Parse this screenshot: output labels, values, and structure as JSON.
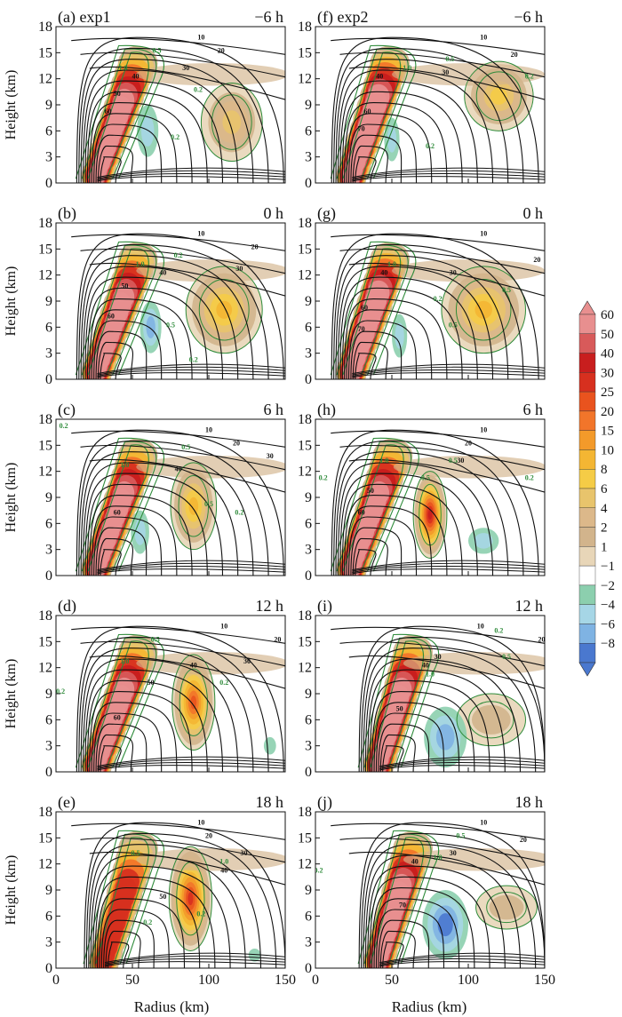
{
  "chart_data": {
    "type": "heatmap",
    "description_units": {
      "shading": "filled contours with discrete levels",
      "black_contours": "line contours",
      "green_contours": "line contours"
    },
    "xlabel": "Radius (km)",
    "ylabel": "Height (km)",
    "xlim": [
      0,
      150
    ],
    "ylim": [
      0,
      18
    ],
    "xticks": [
      0,
      50,
      100,
      150
    ],
    "yticks": [
      0,
      3,
      6,
      9,
      12,
      15,
      18
    ],
    "colorbar": {
      "levels": [
        "60",
        "50",
        "40",
        "30",
        "25",
        "20",
        "15",
        "10",
        "8",
        "6",
        "4",
        "2",
        "1",
        "−1",
        "−2",
        "−4",
        "−6",
        "−8"
      ],
      "colors": [
        "#e88f8f",
        "#d85a5a",
        "#c81e1e",
        "#d7301f",
        "#e9531e",
        "#f2752a",
        "#f39a2a",
        "#f4b633",
        "#f5cc46",
        "#e8c46c",
        "#dcb88a",
        "#d2b48c",
        "#e8d6b8",
        "#ffffff",
        "#8ccfae",
        "#a6d6e6",
        "#7fb3e3",
        "#4a78cf"
      ]
    },
    "black_contour_levels": [
      10,
      20,
      30,
      40,
      50,
      60,
      70
    ],
    "green_contour_levels": [
      0.2,
      0.5,
      1.0
    ],
    "panels": [
      {
        "id": "a",
        "label": "(a) exp1",
        "time": "−6 h",
        "col": 0,
        "row": 0,
        "eyewall": {
          "base_r": 25,
          "top_r": 55,
          "top_z": 14.5,
          "max": 60
        },
        "secondary": {
          "r": 115,
          "z": 7,
          "w": 40,
          "h": 9,
          "max": 6
        },
        "blue": {
          "r": 60,
          "z": 6,
          "w": 14,
          "h": 6,
          "min": -4
        },
        "contour_labels": [
          {
            "v": "10",
            "r": 95,
            "z": 16.5
          },
          {
            "v": "20",
            "r": 108,
            "z": 15
          },
          {
            "v": "30",
            "r": 85,
            "z": 13
          },
          {
            "v": "40",
            "r": 52,
            "z": 12
          },
          {
            "v": "50",
            "r": 40,
            "z": 10
          },
          {
            "v": "60",
            "r": 34,
            "z": 8
          }
        ],
        "green_labels": [
          {
            "v": "0.5",
            "r": 66,
            "z": 15
          },
          {
            "v": "1.0",
            "r": 44,
            "z": 13
          },
          {
            "v": "0.2",
            "r": 93,
            "z": 10.5
          },
          {
            "v": "0.2",
            "r": 78,
            "z": 5
          }
        ]
      },
      {
        "id": "f",
        "label": "(f) exp2",
        "time": "−6 h",
        "col": 1,
        "row": 0,
        "eyewall": {
          "base_r": 22,
          "top_r": 50,
          "top_z": 14.5,
          "max": 70
        },
        "secondary": {
          "r": 120,
          "z": 10,
          "w": 45,
          "h": 8,
          "max": 8
        },
        "blue": {
          "r": 50,
          "z": 5,
          "w": 10,
          "h": 5,
          "min": -4
        },
        "contour_labels": [
          {
            "v": "10",
            "r": 110,
            "z": 16.5
          },
          {
            "v": "20",
            "r": 130,
            "z": 14.5
          },
          {
            "v": "30",
            "r": 85,
            "z": 12.5
          },
          {
            "v": "40",
            "r": 42,
            "z": 12
          },
          {
            "v": "60",
            "r": 34,
            "z": 8
          },
          {
            "v": "70",
            "r": 30,
            "z": 6
          }
        ],
        "green_labels": [
          {
            "v": "0.5",
            "r": 88,
            "z": 14
          },
          {
            "v": "1.0",
            "r": 60,
            "z": 13
          },
          {
            "v": "0.2",
            "r": 140,
            "z": 12
          },
          {
            "v": "0.2",
            "r": 75,
            "z": 4
          }
        ]
      },
      {
        "id": "b",
        "label": "(b)",
        "time": "0 h",
        "col": 0,
        "row": 1,
        "eyewall": {
          "base_r": 25,
          "top_r": 55,
          "top_z": 14.5,
          "max": 60
        },
        "secondary": {
          "r": 110,
          "z": 8,
          "w": 50,
          "h": 10,
          "max": 10
        },
        "blue": {
          "r": 62,
          "z": 6,
          "w": 14,
          "h": 6,
          "min": -6
        },
        "contour_labels": [
          {
            "v": "10",
            "r": 95,
            "z": 16.5
          },
          {
            "v": "20",
            "r": 130,
            "z": 15
          },
          {
            "v": "30",
            "r": 120,
            "z": 12.5
          },
          {
            "v": "40",
            "r": 70,
            "z": 12
          },
          {
            "v": "50",
            "r": 45,
            "z": 10.5
          },
          {
            "v": "60",
            "r": 36,
            "z": 7
          }
        ],
        "green_labels": [
          {
            "v": "0.2",
            "r": 80,
            "z": 14
          },
          {
            "v": "1.0",
            "r": 55,
            "z": 13
          },
          {
            "v": "0.5",
            "r": 75,
            "z": 6
          },
          {
            "v": "0.2",
            "r": 90,
            "z": 2
          }
        ]
      },
      {
        "id": "g",
        "label": "(g)",
        "time": "0 h",
        "col": 1,
        "row": 1,
        "eyewall": {
          "base_r": 22,
          "top_r": 50,
          "top_z": 14.5,
          "max": 70
        },
        "secondary": {
          "r": 110,
          "z": 8,
          "w": 55,
          "h": 10,
          "max": 10
        },
        "blue": {
          "r": 55,
          "z": 5,
          "w": 10,
          "h": 5,
          "min": -4
        },
        "contour_labels": [
          {
            "v": "10",
            "r": 110,
            "z": 16.5
          },
          {
            "v": "20",
            "r": 145,
            "z": 13.5
          },
          {
            "v": "30",
            "r": 90,
            "z": 12
          },
          {
            "v": "40",
            "r": 45,
            "z": 12
          },
          {
            "v": "60",
            "r": 32,
            "z": 8
          },
          {
            "v": "70",
            "r": 30,
            "z": 5.5
          }
        ],
        "green_labels": [
          {
            "v": "0.5",
            "r": 125,
            "z": 10
          },
          {
            "v": "1.0",
            "r": 50,
            "z": 13
          },
          {
            "v": "0.2",
            "r": 80,
            "z": 9
          },
          {
            "v": "0.5",
            "r": 90,
            "z": 6
          }
        ]
      },
      {
        "id": "c",
        "label": "(c)",
        "time": "6 h",
        "col": 0,
        "row": 2,
        "eyewall": {
          "base_r": 25,
          "top_r": 55,
          "top_z": 14.5,
          "max": 60
        },
        "secondary": {
          "r": 90,
          "z": 8,
          "w": 30,
          "h": 10,
          "max": 10
        },
        "blue": {
          "r": 55,
          "z": 5,
          "w": 12,
          "h": 5,
          "min": -4
        },
        "contour_labels": [
          {
            "v": "10",
            "r": 100,
            "z": 16.5
          },
          {
            "v": "20",
            "r": 118,
            "z": 15
          },
          {
            "v": "30",
            "r": 140,
            "z": 13.5
          },
          {
            "v": "40",
            "r": 80,
            "z": 12
          },
          {
            "v": "60",
            "r": 40,
            "z": 7
          }
        ],
        "green_labels": [
          {
            "v": "0.2",
            "r": 5,
            "z": 17
          },
          {
            "v": "0.5",
            "r": 85,
            "z": 14.5
          },
          {
            "v": "1.0",
            "r": 45,
            "z": 12.5
          },
          {
            "v": "0.5",
            "r": 100,
            "z": 8
          },
          {
            "v": "0.2",
            "r": 120,
            "z": 7
          }
        ]
      },
      {
        "id": "h",
        "label": "(h)",
        "time": "6 h",
        "col": 1,
        "row": 2,
        "eyewall": {
          "base_r": 22,
          "top_r": 52,
          "top_z": 14.5,
          "max": 60
        },
        "secondary": {
          "r": 75,
          "z": 7,
          "w": 22,
          "h": 10,
          "max": 40
        },
        "blue": {
          "r": 110,
          "z": 4,
          "w": 20,
          "h": 3,
          "min": -4
        },
        "contour_labels": [
          {
            "v": "10",
            "r": 110,
            "z": 16.5
          },
          {
            "v": "20",
            "r": 100,
            "z": 15
          },
          {
            "v": "30",
            "r": 95,
            "z": 13
          },
          {
            "v": "50",
            "r": 36,
            "z": 9.5
          },
          {
            "v": "60",
            "r": 30,
            "z": 7
          }
        ],
        "green_labels": [
          {
            "v": "0.5",
            "r": 90,
            "z": 13
          },
          {
            "v": "1.0",
            "r": 45,
            "z": 13
          },
          {
            "v": "0.5",
            "r": 72,
            "z": 11
          },
          {
            "v": "0.2",
            "r": 140,
            "z": 11
          },
          {
            "v": "0.2",
            "r": 5,
            "z": 11
          }
        ]
      },
      {
        "id": "d",
        "label": "(d)",
        "time": "12 h",
        "col": 0,
        "row": 3,
        "eyewall": {
          "base_r": 25,
          "top_r": 55,
          "top_z": 14.5,
          "max": 60
        },
        "secondary": {
          "r": 90,
          "z": 8,
          "w": 28,
          "h": 11,
          "max": 25
        },
        "blue": {
          "r": 140,
          "z": 3,
          "w": 8,
          "h": 2,
          "min": -2
        },
        "contour_labels": [
          {
            "v": "10",
            "r": 110,
            "z": 16.5
          },
          {
            "v": "20",
            "r": 145,
            "z": 15
          },
          {
            "v": "30",
            "r": 125,
            "z": 12.5
          },
          {
            "v": "40",
            "r": 90,
            "z": 12
          },
          {
            "v": "50",
            "r": 62,
            "z": 10
          },
          {
            "v": "60",
            "r": 40,
            "z": 6
          }
        ],
        "green_labels": [
          {
            "v": "0.5",
            "r": 65,
            "z": 15
          },
          {
            "v": "1.0",
            "r": 45,
            "z": 12.5
          },
          {
            "v": "0.2",
            "r": 110,
            "z": 10
          },
          {
            "v": "0.2",
            "r": 3,
            "z": 9
          }
        ]
      },
      {
        "id": "i",
        "label": "(i)",
        "time": "12 h",
        "col": 1,
        "row": 3,
        "eyewall": {
          "base_r": 40,
          "top_r": 65,
          "top_z": 14.5,
          "max": 60
        },
        "secondary": {
          "r": 115,
          "z": 6,
          "w": 45,
          "h": 6,
          "max": 2
        },
        "blue": {
          "r": 85,
          "z": 4,
          "w": 28,
          "h": 7,
          "min": -6
        },
        "contour_labels": [
          {
            "v": "10",
            "r": 108,
            "z": 16.5
          },
          {
            "v": "20",
            "r": 148,
            "z": 15
          },
          {
            "v": "30",
            "r": 80,
            "z": 13
          },
          {
            "v": "40",
            "r": 72,
            "z": 12
          },
          {
            "v": "50",
            "r": 55,
            "z": 7
          }
        ],
        "green_labels": [
          {
            "v": "0.2",
            "r": 120,
            "z": 16
          },
          {
            "v": "0.5",
            "r": 125,
            "z": 13
          },
          {
            "v": "1.0",
            "r": 75,
            "z": 11
          }
        ]
      },
      {
        "id": "e",
        "label": "(e)",
        "time": "18 h",
        "col": 0,
        "row": 4,
        "eyewall": {
          "base_r": 30,
          "top_r": 55,
          "top_z": 14.5,
          "max": 30
        },
        "secondary": {
          "r": 88,
          "z": 8,
          "w": 28,
          "h": 12,
          "max": 30
        },
        "blue": {
          "r": 130,
          "z": 1.5,
          "w": 8,
          "h": 1.5,
          "min": -2
        },
        "contour_labels": [
          {
            "v": "10",
            "r": 95,
            "z": 16.5
          },
          {
            "v": "20",
            "r": 100,
            "z": 15
          },
          {
            "v": "30",
            "r": 123,
            "z": 13
          },
          {
            "v": "40",
            "r": 110,
            "z": 11
          },
          {
            "v": "50",
            "r": 70,
            "z": 8
          }
        ],
        "green_labels": [
          {
            "v": "0.5",
            "r": 52,
            "z": 13
          },
          {
            "v": "1.0",
            "r": 110,
            "z": 12
          },
          {
            "v": "0.2",
            "r": 60,
            "z": 5
          },
          {
            "v": "0.2",
            "r": 95,
            "z": 6
          }
        ]
      },
      {
        "id": "j",
        "label": "(j)",
        "time": "18 h",
        "col": 1,
        "row": 4,
        "eyewall": {
          "base_r": 40,
          "top_r": 65,
          "top_z": 14.5,
          "max": 60
        },
        "secondary": {
          "r": 125,
          "z": 7,
          "w": 40,
          "h": 5,
          "max": 2
        },
        "blue": {
          "r": 85,
          "z": 5,
          "w": 30,
          "h": 8,
          "min": -8
        },
        "contour_labels": [
          {
            "v": "10",
            "r": 110,
            "z": 16.5
          },
          {
            "v": "20",
            "r": 136,
            "z": 14.5
          },
          {
            "v": "30",
            "r": 90,
            "z": 13
          },
          {
            "v": "40",
            "r": 65,
            "z": 12
          },
          {
            "v": "70",
            "r": 57,
            "z": 7
          }
        ],
        "green_labels": [
          {
            "v": "0.5",
            "r": 95,
            "z": 15
          },
          {
            "v": "1.0",
            "r": 80,
            "z": 12.5
          },
          {
            "v": "0.2",
            "r": 2,
            "z": 11
          }
        ]
      }
    ]
  }
}
